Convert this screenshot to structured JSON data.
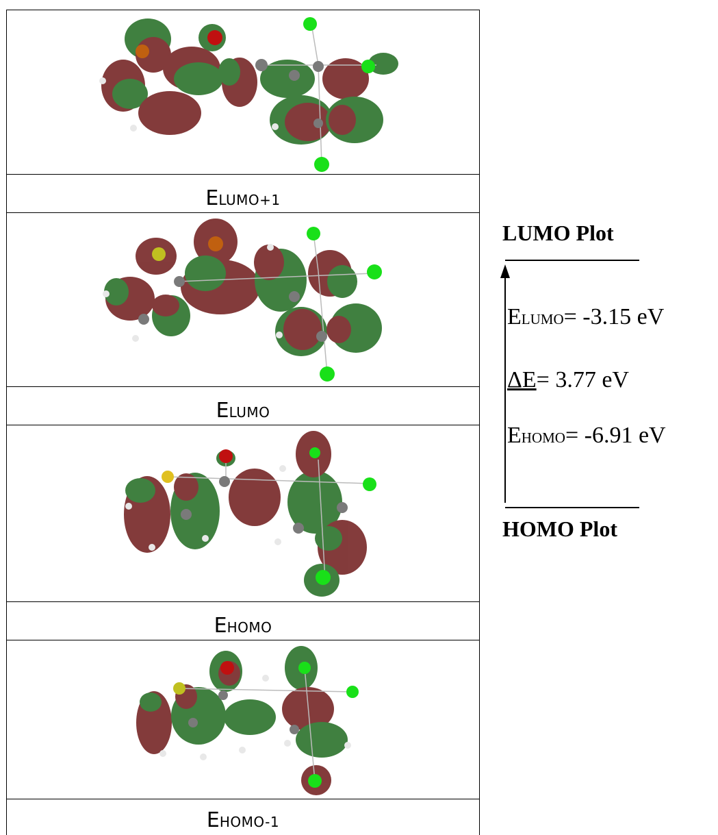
{
  "table": {
    "rows": [
      {
        "caption_main": "E",
        "caption_sub": "LUMO+1"
      },
      {
        "caption_main": "E",
        "caption_sub": "LUMO"
      },
      {
        "caption_main": "E",
        "caption_sub": "HOMO"
      },
      {
        "caption_main": "E",
        "caption_sub": "HOMO-1"
      }
    ]
  },
  "diagram": {
    "top_label": "LUMO Plot",
    "bottom_label": "HOMO Plot",
    "lumo": {
      "main": "E",
      "sub": "LUMO",
      "value": "= -3.15 eV"
    },
    "gap": {
      "main": "ΔE",
      "value": "= 3.77 eV"
    },
    "homo": {
      "main": "E",
      "sub": "HOMO",
      "value": "= -6.91 eV"
    }
  },
  "colors": {
    "lobe_red": "#6e1a1a",
    "lobe_green": "#1f6a1f",
    "atom_green": "#19e019",
    "atom_gray": "#7a7a7a",
    "atom_white": "#e8e8e8",
    "atom_red": "#c01010",
    "atom_orange": "#c06010",
    "atom_yellow": "#e0c020"
  }
}
